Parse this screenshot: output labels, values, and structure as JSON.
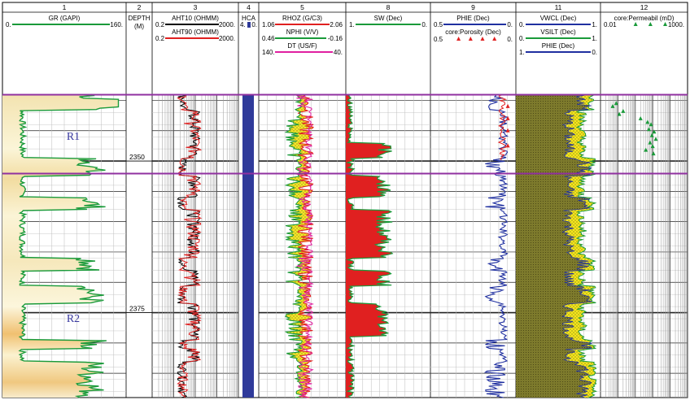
{
  "chart_data": {
    "type": "well-log",
    "depth": {
      "min": 2339,
      "max": 2389,
      "unit": "M",
      "labels": [
        2350,
        2375
      ]
    },
    "tracks": [
      {
        "number": "1",
        "curves": [
          {
            "name": "GR (GAPI)",
            "color": "#1a9a3a",
            "min_label": "0.",
            "max_label": "160."
          }
        ]
      },
      {
        "number": "2",
        "title": "DEPTH",
        "unit": "(M)"
      },
      {
        "number": "3",
        "curves": [
          {
            "name": "AHT10 (OHMM)",
            "color": "#000000",
            "min_label": "0.2",
            "max_label": "2000."
          },
          {
            "name": "AHT90 (OHMM)",
            "color": "#e02020",
            "min_label": "0.2",
            "max_label": "2000."
          }
        ]
      },
      {
        "number": "4",
        "title": "HCA",
        "min_label": "4.",
        "max_label": "0."
      },
      {
        "number": "5",
        "curves": [
          {
            "name": "RHOZ (G/C3)",
            "color": "#e02020",
            "min_label": "1.06",
            "max_label": "2.06"
          },
          {
            "name": "NPHI (V/V)",
            "color": "#1a9a3a",
            "min_label": "0.46",
            "max_label": "-0.16"
          },
          {
            "name": "DT (US/F)",
            "color": "#e020a0",
            "min_label": "140.",
            "max_label": "40."
          }
        ]
      },
      {
        "number": "8",
        "curves": [
          {
            "name": "SW (Dec)",
            "color": "#1a9a3a",
            "min_label": "1.",
            "max_label": "0."
          }
        ]
      },
      {
        "number": "9",
        "curves": [
          {
            "name": "PHIE (Dec)",
            "color": "#2030a0",
            "min_label": "0.5",
            "max_label": "0."
          },
          {
            "name": "core:Porosity (Dec)",
            "color": "#e02020",
            "min_label": "0.5",
            "max_label": "0."
          }
        ]
      },
      {
        "number": "11",
        "curves": [
          {
            "name": "VWCL (Dec)",
            "color": "#2030a0",
            "min_label": "0.",
            "max_label": "1."
          },
          {
            "name": "VSILT (Dec)",
            "color": "#1a9a3a",
            "min_label": "0.",
            "max_label": "1."
          },
          {
            "name": "PHIE (Dec)",
            "color": "#2030a0",
            "min_label": "1.",
            "max_label": "0."
          }
        ]
      },
      {
        "number": "12",
        "curves": [
          {
            "name": "core:Permeabil (mD)",
            "color": "#1a9a3a",
            "min_label": "0.01",
            "max_label": "1000."
          }
        ]
      }
    ],
    "zones": [
      {
        "name": "R1",
        "depth": 2346
      },
      {
        "name": "R2",
        "depth": 2376
      }
    ],
    "zone_markers": [
      {
        "depth": 2339
      },
      {
        "depth": 2352
      }
    ],
    "colors": {
      "zone_marker": "#9030a0",
      "sand_fill": "#f6efc8",
      "hca": "#2f3a9a",
      "density_fill": "#f5e61e",
      "sw_fill": "#e02020",
      "clay_fill": "#7a7a2a"
    }
  }
}
